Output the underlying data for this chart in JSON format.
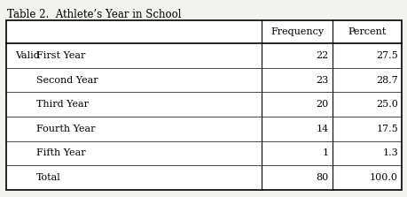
{
  "title": "Table 2.  Athlete’s Year in School",
  "col_headers": [
    "",
    "Frequency",
    "Percent"
  ],
  "rows": [
    [
      "Valid   First Year",
      "22",
      "27.5"
    ],
    [
      "        Second Year",
      "23",
      "28.7"
    ],
    [
      "        Third Year",
      "20",
      "25.0"
    ],
    [
      "        Fourth Year",
      "14",
      "17.5"
    ],
    [
      "        Fifth Year",
      "1",
      "1.3"
    ],
    [
      "        Total",
      "80",
      "100.0"
    ]
  ],
  "valid_label": "Valid",
  "row_labels": [
    "First Year",
    "Second Year",
    "Third Year",
    "Fourth Year",
    "Fifth Year",
    "Total"
  ],
  "frequencies": [
    "22",
    "23",
    "20",
    "14",
    "1",
    "80"
  ],
  "percents": [
    "27.5",
    "28.7",
    "25.0",
    "17.5",
    "1.3",
    "100.0"
  ],
  "bg_color": "#f2f2ee",
  "font_family": "serif",
  "title_fontsize": 8.5,
  "cell_fontsize": 8.0,
  "header_fontsize": 8.0,
  "fig_width": 4.6,
  "fig_height": 2.23,
  "dpi": 100
}
